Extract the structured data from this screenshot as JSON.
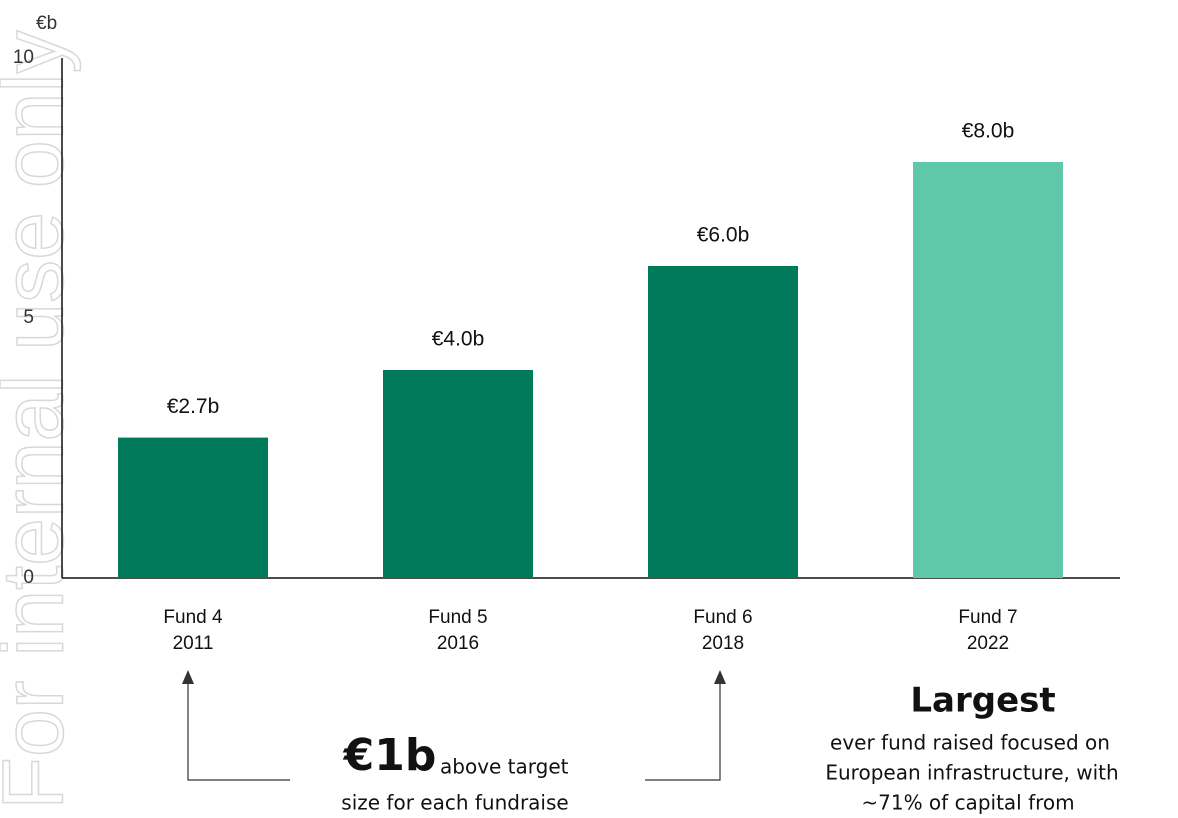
{
  "chart_data": {
    "type": "bar",
    "y_unit": "€b",
    "watermark": "For internal use only",
    "categories": [
      [
        "Fund 4",
        "2011"
      ],
      [
        "Fund 5",
        "2016"
      ],
      [
        "Fund 6",
        "2018"
      ],
      [
        "Fund 7",
        "2022"
      ]
    ],
    "values": [
      2.7,
      4.0,
      6.0,
      8.0
    ],
    "value_labels": [
      "€2.7b",
      "€4.0b",
      "€6.0b",
      "€8.0b"
    ],
    "colors": [
      "#007a5a",
      "#007a5a",
      "#007a5a",
      "#5fc8a8"
    ],
    "ylim": [
      0,
      10
    ],
    "yticks": [
      0,
      5,
      10
    ],
    "grid": false,
    "annotations": {
      "left": {
        "big": "€1b",
        "small": "above target",
        "line2": "size for each fundraise"
      },
      "right": {
        "big": "Largest",
        "lines": [
          "ever fund raised focused on",
          "European infrastructure, with",
          "~71% of capital from"
        ]
      }
    }
  }
}
